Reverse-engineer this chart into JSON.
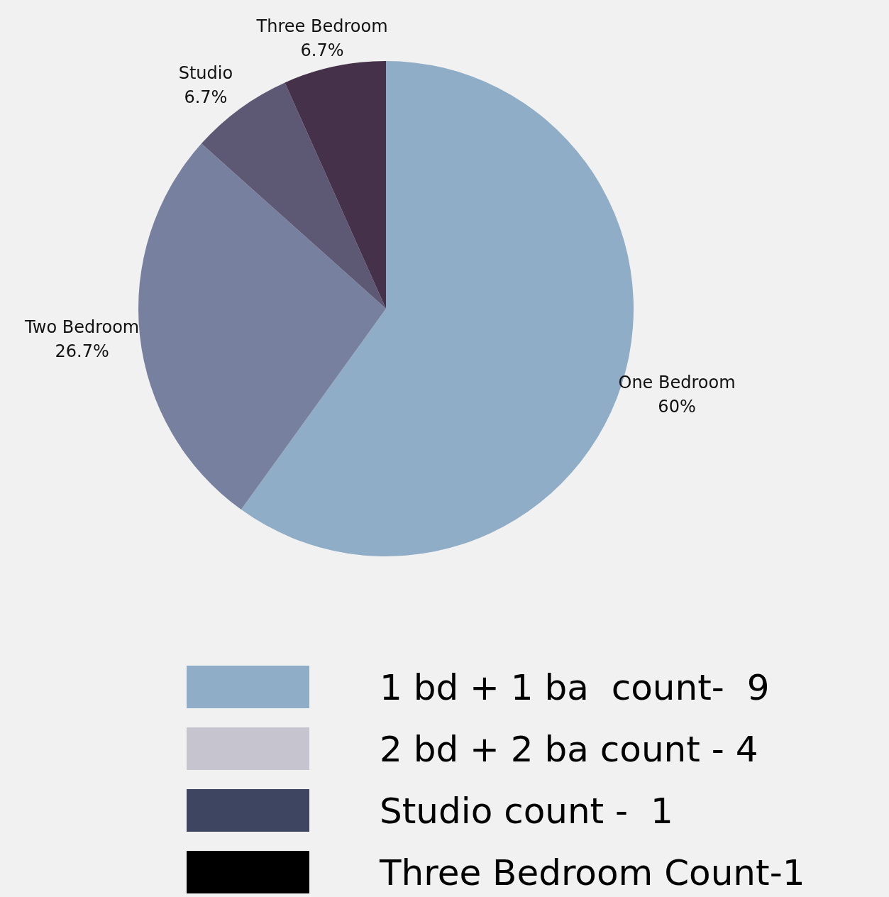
{
  "chart_data": [
    {
      "type": "pie",
      "categories": [
        "One Bedroom",
        "Two Bedroom",
        "Studio",
        "Three Bedroom"
      ],
      "values": [
        60,
        26.7,
        6.7,
        6.7
      ],
      "colors": [
        "#8fadc6",
        "#77819f",
        "#5d5874",
        "#45314a"
      ],
      "value_labels": [
        "60%",
        "26.7%",
        "6.7%",
        "6.7%"
      ]
    },
    {
      "type": "other",
      "categories": [
        "1 bd + 1 ba  count-  9",
        "2 bd + 2 ba count - 4",
        "Studio count -  1",
        "Three Bedroom Count-1"
      ],
      "colors": [
        "#8fadc6",
        "#c5c4cf",
        "#3e4561",
        "#000000"
      ]
    }
  ]
}
